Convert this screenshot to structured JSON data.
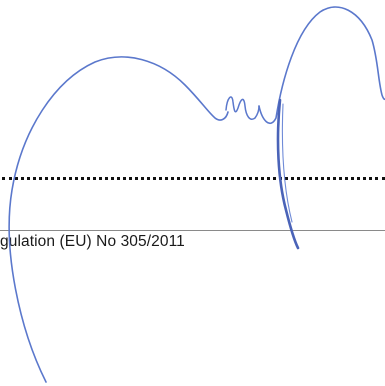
{
  "document": {
    "footer_text": "gulation (EU) No 305/2011"
  },
  "signature": {
    "ink_color": "#5b78cc"
  }
}
